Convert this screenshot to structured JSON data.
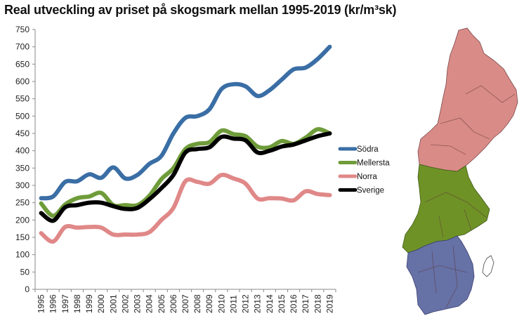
{
  "chart_data": {
    "type": "line",
    "title": "Real utveckling av priset på skogsmark mellan 1995-2019 (kr/m³sk)",
    "x": [
      "1995",
      "1996",
      "1997",
      "1998",
      "1999",
      "2000",
      "2001",
      "2002",
      "2003",
      "2004",
      "2005",
      "2006",
      "2007",
      "2008",
      "2009",
      "2010",
      "2011",
      "2012",
      "2013",
      "2014",
      "2015",
      "2016",
      "2017",
      "2018",
      "2019"
    ],
    "yticks": [
      0,
      50,
      100,
      150,
      200,
      250,
      300,
      350,
      400,
      450,
      500,
      550,
      600,
      650,
      700,
      750
    ],
    "ylim": [
      0,
      750
    ],
    "grid": false,
    "legend_position": "right",
    "series": [
      {
        "name": "Södra",
        "color": "#3a6ea5",
        "values": [
          263,
          268,
          310,
          312,
          332,
          322,
          352,
          320,
          330,
          362,
          385,
          450,
          495,
          500,
          520,
          578,
          592,
          586,
          558,
          575,
          605,
          635,
          640,
          665,
          700
        ]
      },
      {
        "name": "Mellersta",
        "color": "#6f9c3a",
        "values": [
          248,
          212,
          245,
          263,
          268,
          278,
          243,
          243,
          243,
          270,
          318,
          350,
          405,
          420,
          425,
          458,
          448,
          442,
          412,
          410,
          428,
          420,
          438,
          462,
          450
        ]
      },
      {
        "name": "Norra",
        "color": "#e08888",
        "values": [
          162,
          138,
          180,
          178,
          180,
          178,
          158,
          158,
          158,
          165,
          200,
          235,
          312,
          310,
          305,
          330,
          320,
          305,
          262,
          263,
          262,
          257,
          283,
          275,
          272
        ]
      },
      {
        "name": "Sverige",
        "color": "#000000",
        "values": [
          220,
          198,
          237,
          243,
          250,
          250,
          240,
          232,
          235,
          260,
          292,
          330,
          395,
          405,
          410,
          440,
          435,
          430,
          395,
          400,
          412,
          418,
          430,
          442,
          450
        ]
      }
    ]
  },
  "map": {
    "regions": [
      {
        "name": "Norra",
        "color": "#d98b87"
      },
      {
        "name": "Mellersta",
        "color": "#6f9227"
      },
      {
        "name": "Södra",
        "color": "#6671a6"
      }
    ]
  }
}
